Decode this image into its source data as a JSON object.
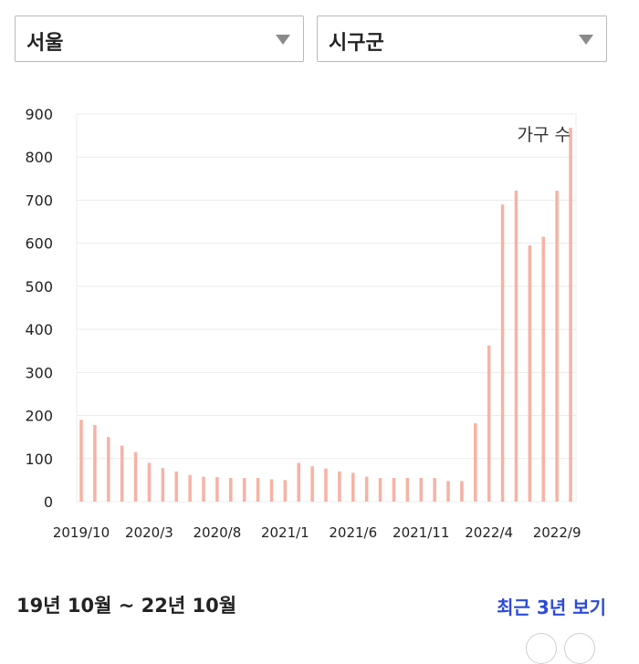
{
  "filters": {
    "region": "서울",
    "district": "시구군"
  },
  "footer": {
    "period": "19년 10월 ~ 22년 10월",
    "recent_link": "최근 3년 보기"
  },
  "colors": {
    "bar": "#f7b2a4",
    "link": "#2c4ad8"
  },
  "chart_data": {
    "type": "bar",
    "series": [
      {
        "name": "가구 수",
        "values": [
          190,
          178,
          150,
          130,
          115,
          90,
          78,
          70,
          62,
          58,
          57,
          55,
          55,
          55,
          52,
          50,
          90,
          82,
          77,
          70,
          67,
          58,
          55,
          55,
          55,
          55,
          55,
          48,
          48,
          182,
          362,
          690,
          722,
          595,
          615,
          722,
          868
        ]
      }
    ],
    "categories": [
      "2019/10",
      "2019/11",
      "2019/12",
      "2020/1",
      "2020/2",
      "2020/3",
      "2020/4",
      "2020/5",
      "2020/6",
      "2020/7",
      "2020/8",
      "2020/9",
      "2020/10",
      "2020/11",
      "2020/12",
      "2021/1",
      "2021/2",
      "2021/3",
      "2021/4",
      "2021/5",
      "2021/6",
      "2021/7",
      "2021/8",
      "2021/9",
      "2021/10",
      "2021/11",
      "2021/12",
      "2022/1",
      "2022/2",
      "2022/3",
      "2022/4",
      "2022/5",
      "2022/6",
      "2022/7",
      "2022/8",
      "2022/9",
      "2022/10"
    ],
    "x_tick_labels": [
      "2019/10",
      "2020/3",
      "2020/8",
      "2021/1",
      "2021/6",
      "2021/11",
      "2022/4",
      "2022/9"
    ],
    "y_ticks": [
      0,
      100,
      200,
      300,
      400,
      500,
      600,
      700,
      800,
      900
    ],
    "ylim": [
      0,
      900
    ],
    "legend": "top-right",
    "grid": true
  }
}
